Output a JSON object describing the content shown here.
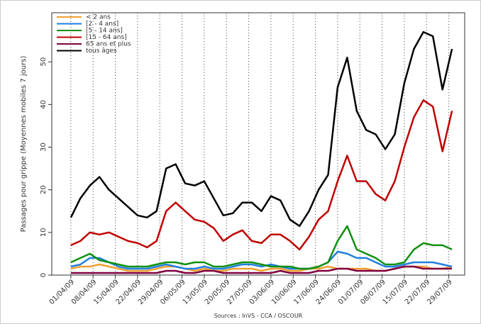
{
  "chart_data": {
    "type": "line",
    "y_label": "Passages pour grippe (Moyennes mobiles 7 jours)",
    "x_label": "Sources : InVS - CCA / OSCOUR",
    "x": [
      "01/04/09",
      "04/04/09",
      "07/04/09",
      "10/04/09",
      "13/04/09",
      "16/04/09",
      "19/04/09",
      "22/04/09",
      "25/04/09",
      "28/04/09",
      "01/05/09",
      "04/05/09",
      "07/05/09",
      "10/05/09",
      "13/05/09",
      "16/05/09",
      "19/05/09",
      "22/05/09",
      "25/05/09",
      "28/05/09",
      "31/05/09",
      "03/06/09",
      "06/06/09",
      "09/06/09",
      "12/06/09",
      "15/06/09",
      "18/06/09",
      "21/06/09",
      "24/06/09",
      "27/06/09",
      "30/06/09",
      "03/07/09",
      "06/07/09",
      "09/07/09",
      "12/07/09",
      "15/07/09",
      "18/07/09",
      "21/07/09",
      "24/07/09",
      "27/07/09",
      "30/07/09"
    ],
    "series": [
      {
        "name": "< 2 ans",
        "color": "#f0a030",
        "values": [
          1.5,
          2,
          2,
          2.5,
          2,
          1.5,
          1,
          1,
          1,
          1.5,
          2,
          2,
          1.5,
          1,
          1.5,
          1,
          1,
          1.5,
          1.5,
          1.5,
          1,
          1.5,
          1.5,
          1,
          1,
          1.5,
          1.5,
          2,
          1.5,
          1.5,
          1.5,
          1.5,
          1,
          1,
          1.5,
          2,
          2,
          2,
          1.5,
          1.5,
          2
        ]
      },
      {
        "name": "[2 - 4 ans]",
        "color": "#2080e0",
        "values": [
          2,
          2.5,
          4,
          4,
          3,
          2,
          1.5,
          1.5,
          1.5,
          2,
          2.5,
          2,
          1.5,
          1.5,
          2,
          1.5,
          1.5,
          2,
          2.5,
          2.5,
          2,
          2.5,
          2,
          1.5,
          1.5,
          1.5,
          2,
          3,
          5.5,
          5,
          4,
          4,
          3,
          2,
          2,
          2.5,
          3,
          3,
          3,
          2.5,
          2
        ]
      },
      {
        "name": "[5 - 14 ans]",
        "color": "#109010",
        "values": [
          3,
          4,
          5,
          3.5,
          3,
          2.5,
          2,
          2,
          2,
          2.5,
          3,
          3,
          2.5,
          3,
          3,
          2,
          2,
          2.5,
          3,
          3,
          2.5,
          2,
          2,
          2,
          1.5,
          1.5,
          2,
          3,
          8,
          11.5,
          6,
          5,
          4,
          2.5,
          2.5,
          3,
          6,
          7.5,
          7,
          7,
          6
        ]
      },
      {
        "name": "[15 - 64 ans]",
        "color": "#c00000",
        "values": [
          7,
          8,
          10,
          9.5,
          10,
          9,
          8,
          7.5,
          6.5,
          8,
          15,
          17,
          15,
          13,
          12.5,
          11,
          8,
          9.5,
          10.5,
          8,
          7.5,
          9.5,
          9.5,
          8,
          6,
          9,
          13,
          15,
          22,
          28,
          22,
          22,
          19,
          17.5,
          22,
          30,
          37,
          41,
          39.5,
          29,
          38.5
        ]
      },
      {
        "name": "65 ans et plus",
        "color": "#800040",
        "values": [
          0.5,
          0.5,
          0.5,
          0.5,
          0.5,
          0.5,
          0.5,
          0.5,
          0.5,
          0.5,
          1,
          1,
          0.5,
          0.5,
          1,
          1,
          0.5,
          0.5,
          0.5,
          0.5,
          0.5,
          0.5,
          1,
          0.5,
          0.5,
          0.5,
          1,
          1,
          1.5,
          1.5,
          1,
          1,
          1,
          1,
          1.5,
          2,
          2,
          1.5,
          1.5,
          1.5,
          1.5
        ]
      },
      {
        "name": "tous âges",
        "color": "#000000",
        "values": [
          13.5,
          18,
          21,
          23,
          20,
          18,
          16,
          14,
          13.5,
          15,
          25,
          26,
          21.5,
          21,
          22,
          18,
          14,
          14.5,
          17,
          17,
          15,
          18.5,
          17.5,
          13,
          11.5,
          15,
          20,
          23.5,
          44,
          51,
          38.5,
          34,
          33,
          29.5,
          33,
          45,
          53,
          57,
          56,
          43.5,
          53
        ]
      }
    ],
    "xlim": [
      "26/03/09",
      "03/08/09"
    ],
    "xticks": [
      "01/04/09",
      "08/04/09",
      "15/04/09",
      "22/04/09",
      "29/04/09",
      "06/05/09",
      "13/05/09",
      "20/05/09",
      "27/05/09",
      "03/06/09",
      "10/06/09",
      "17/06/09",
      "24/06/09",
      "01/07/09",
      "08/07/09",
      "15/07/09",
      "22/07/09",
      "29/07/09"
    ],
    "ylim": [
      0,
      61.5
    ],
    "yticks": [
      0,
      10,
      20,
      30,
      40,
      50
    ],
    "grid": true
  }
}
